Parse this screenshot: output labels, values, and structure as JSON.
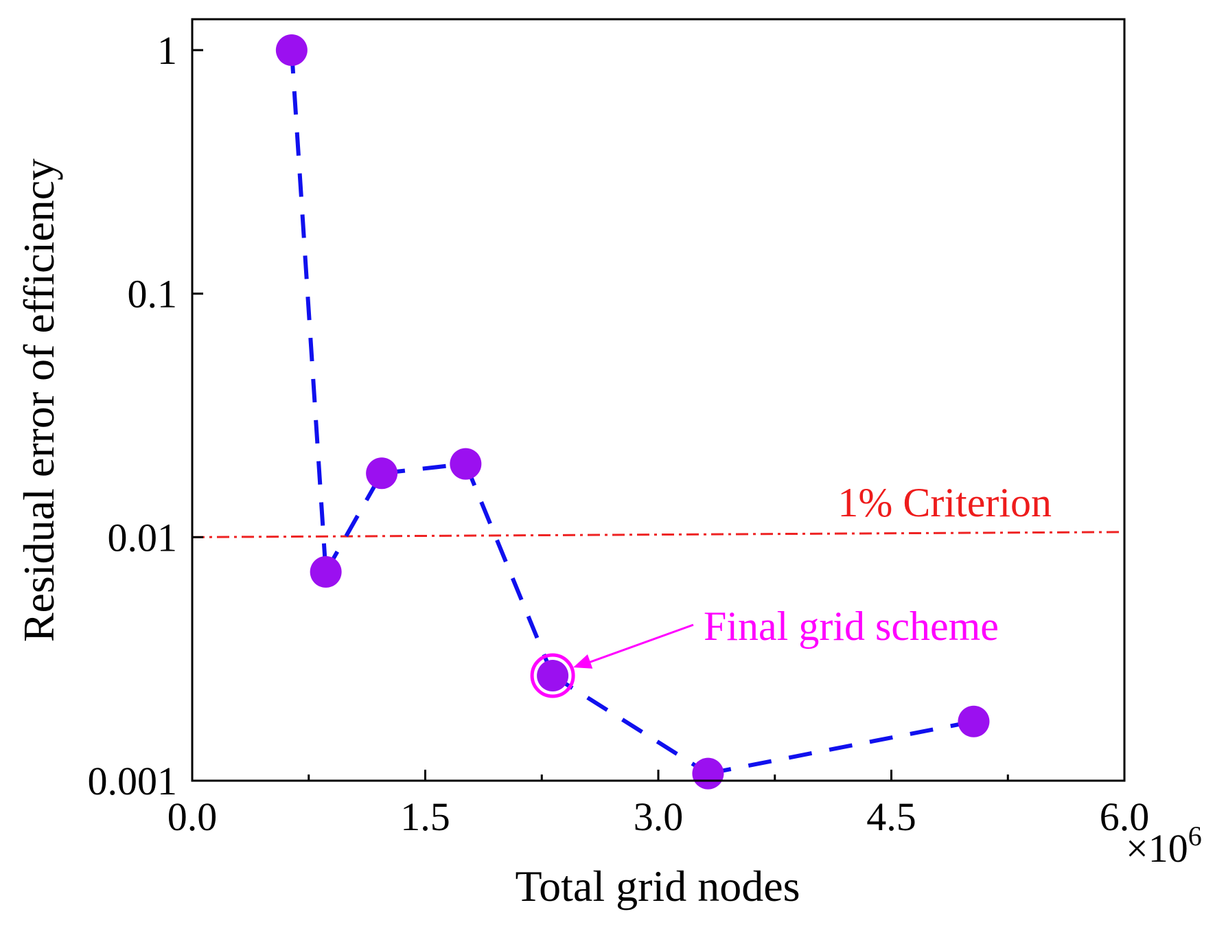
{
  "chart_data": {
    "type": "scatter",
    "title": "",
    "xlabel": "Total grid nodes",
    "ylabel": "Residual error of efficiency",
    "x_multiplier_label": "×10",
    "x_multiplier_exponent": "6",
    "xlim": [
      0,
      6.0
    ],
    "ylim": [
      0.001,
      1
    ],
    "yscale": "log",
    "x_ticks": [
      0,
      1.5,
      3.0,
      4.5,
      6.0
    ],
    "x_tick_labels": [
      "0.0",
      "1.5",
      "3.0",
      "4.5",
      "6.0"
    ],
    "x_minor_ticks": [
      0.75,
      2.25,
      3.75,
      5.25
    ],
    "y_ticks": [
      0.001,
      0.01,
      0.1,
      1
    ],
    "y_tick_labels": [
      "0.001",
      "0.01",
      "0.1",
      "1"
    ],
    "grid": false,
    "series": [
      {
        "name": "Residual error",
        "x": [
          0.64,
          0.86,
          1.22,
          1.76,
          2.32,
          3.32,
          5.03
        ],
        "y": [
          1.0,
          0.0072,
          0.0183,
          0.02,
          0.0027,
          0.00107,
          0.00175
        ],
        "marker_color": "#9b10f0",
        "line_color": "#1010ee",
        "line_style": "dashed"
      }
    ],
    "reference_line": {
      "label": "1% Criterion",
      "y_start": 0.01,
      "y_end": 0.0105,
      "color": "#ee2222",
      "style": "dash-dot"
    },
    "annotation": {
      "text": "Final grid scheme",
      "point_x": 2.32,
      "point_y": 0.0027,
      "color": "#ff00ff"
    }
  }
}
